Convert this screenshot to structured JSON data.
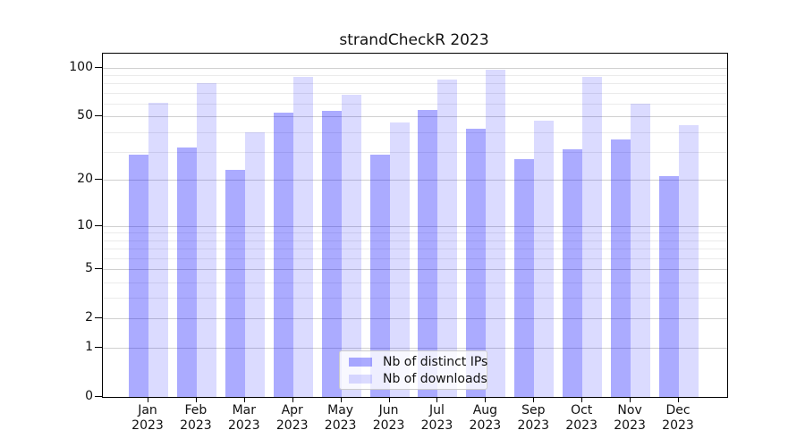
{
  "title": "strandCheckR 2023",
  "chart_data": {
    "type": "bar",
    "y_scale": "log1p",
    "categories": [
      "Jan 2023",
      "Feb 2023",
      "Mar 2023",
      "Apr 2023",
      "May 2023",
      "Jun 2023",
      "Jul 2023",
      "Aug 2023",
      "Sep 2023",
      "Oct 2023",
      "Nov 2023",
      "Dec 2023"
    ],
    "month_labels": [
      "Jan",
      "Feb",
      "Mar",
      "Apr",
      "May",
      "Jun",
      "Jul",
      "Aug",
      "Sep",
      "Oct",
      "Nov",
      "Dec"
    ],
    "year_label": "2023",
    "series": [
      {
        "name": "Nb of distinct IPs",
        "color": "rgba(0,0,255,0.33)",
        "values": [
          29,
          32,
          23,
          53,
          54,
          29,
          55,
          42,
          27,
          31,
          36,
          21
        ]
      },
      {
        "name": "Nb of downloads",
        "color": "rgba(0,0,255,0.14)",
        "values": [
          61,
          80,
          40,
          88,
          68,
          46,
          84,
          97,
          47,
          88,
          60,
          44
        ]
      }
    ],
    "yticks_major": [
      0,
      1,
      2,
      5,
      10,
      20,
      50,
      100
    ],
    "yticks_minor": [
      3,
      4,
      6,
      7,
      8,
      9,
      30,
      40,
      60,
      70,
      80,
      90
    ],
    "ylim": [
      0,
      122
    ],
    "xlabel": "",
    "ylabel": "",
    "grid": true,
    "legend_position": "lower center"
  },
  "colors": {
    "bar_distinct_ips": "rgba(0,0,255,0.33)",
    "bar_downloads": "rgba(0,0,255,0.14)",
    "grid_major": "#d0d0d0",
    "grid_minor": "#ebebeb",
    "spine": "#000000",
    "text": "#111111",
    "legend_border": "#cccccc",
    "legend_background": "rgba(255,255,255,0.8)"
  }
}
